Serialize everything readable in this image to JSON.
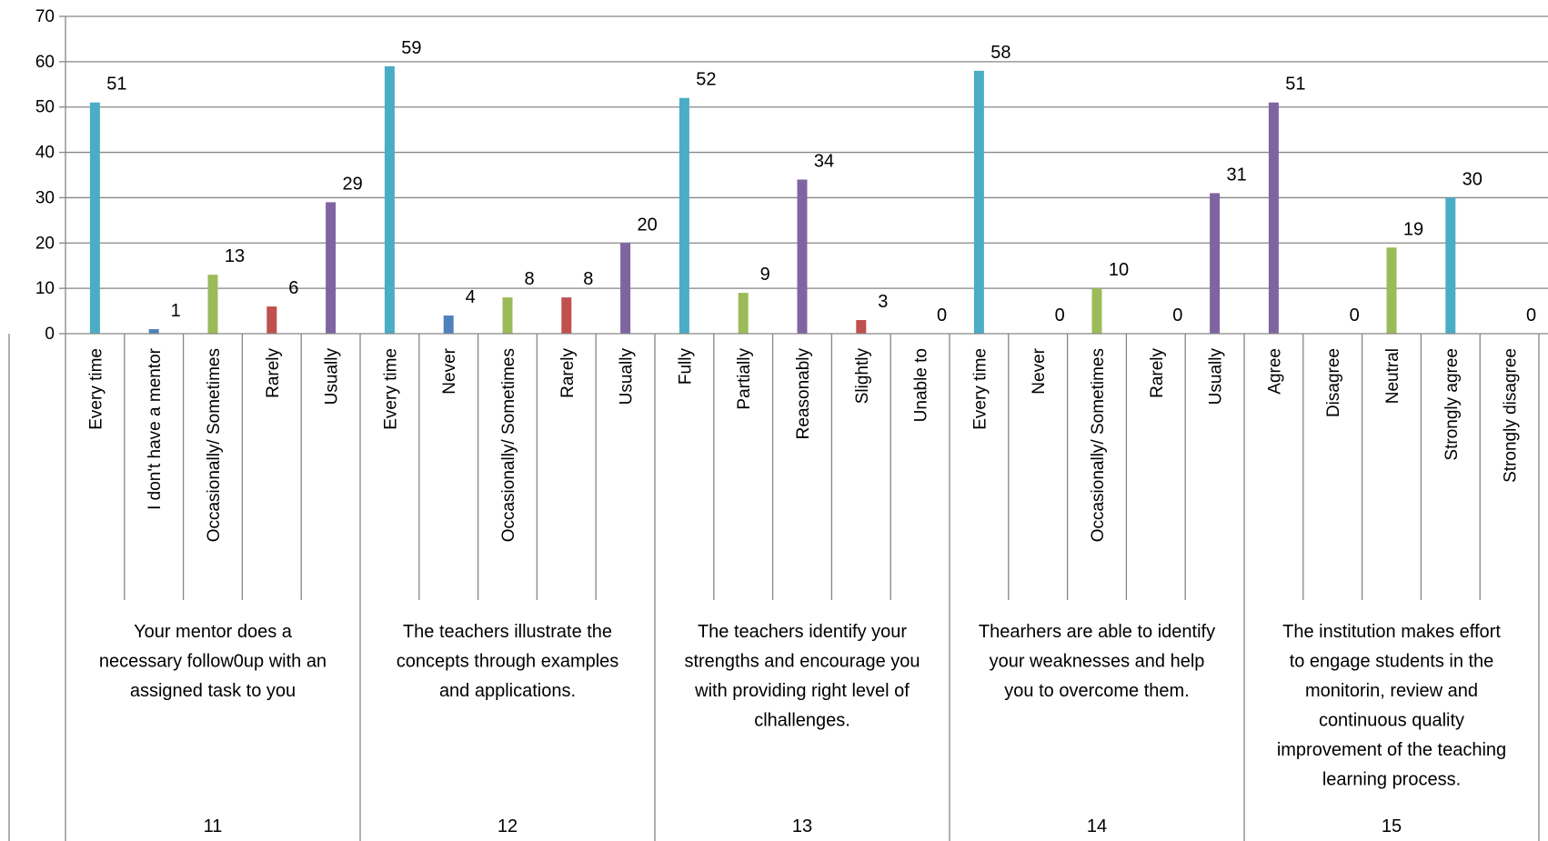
{
  "chart_data": {
    "type": "bar",
    "title": "",
    "xlabel": "",
    "ylabel": "",
    "ylim": [
      0,
      70
    ],
    "y_ticks": [
      0,
      10,
      20,
      30,
      40,
      50,
      60,
      70
    ],
    "grid": true,
    "legend": "none",
    "colors": {
      "teal": "#4BACC6",
      "blue": "#4F81BD",
      "green": "#9BBB59",
      "red": "#C0504D",
      "purple": "#8064A2",
      "axis": "#868686",
      "grid": "#868686"
    },
    "groups": [
      {
        "number": "11",
        "question": "Your mentor does a necessary follow0up with an assigned task to you",
        "question_lines": [
          "Your mentor does a",
          "necessary follow0up with an",
          "assigned task to you"
        ],
        "bars": [
          {
            "category": "Every time",
            "value": 51,
            "color": "teal"
          },
          {
            "category": "I don't have a mentor",
            "value": 1,
            "color": "blue"
          },
          {
            "category": "Occasionally/ Sometimes",
            "value": 13,
            "color": "green"
          },
          {
            "category": "Rarely",
            "value": 6,
            "color": "red"
          },
          {
            "category": "Usually",
            "value": 29,
            "color": "purple"
          }
        ]
      },
      {
        "number": "12",
        "question": "The teachers illustrate the concepts through examples and applications.",
        "question_lines": [
          "The teachers illustrate the",
          "concepts through examples",
          "and applications."
        ],
        "bars": [
          {
            "category": "Every time",
            "value": 59,
            "color": "teal"
          },
          {
            "category": "Never",
            "value": 4,
            "color": "blue"
          },
          {
            "category": "Occasionally/ Sometimes",
            "value": 8,
            "color": "green"
          },
          {
            "category": "Rarely",
            "value": 8,
            "color": "red"
          },
          {
            "category": "Usually",
            "value": 20,
            "color": "purple"
          }
        ]
      },
      {
        "number": "13",
        "question": "The teachers identify your strengths and encourage you with providing right level of clhallenges.",
        "question_lines": [
          "The teachers identify your",
          "strengths and encourage you",
          "with providing right level of",
          "clhallenges."
        ],
        "bars": [
          {
            "category": "Fully",
            "value": 52,
            "color": "teal"
          },
          {
            "category": "Partially",
            "value": 9,
            "color": "green"
          },
          {
            "category": "Reasonably",
            "value": 34,
            "color": "purple"
          },
          {
            "category": "Slightly",
            "value": 3,
            "color": "red"
          },
          {
            "category": "Unable to",
            "value": 0,
            "color": "purple"
          }
        ]
      },
      {
        "number": "14",
        "question": "Thearhers are able to identify your weaknesses and help you to overcome them.",
        "question_lines": [
          "Thearhers are able to identify",
          "your weaknesses and help",
          "you to overcome them."
        ],
        "bars": [
          {
            "category": "Every time",
            "value": 58,
            "color": "teal"
          },
          {
            "category": "Never",
            "value": 0,
            "color": "blue"
          },
          {
            "category": "Occasionally/ Sometimes",
            "value": 10,
            "color": "green"
          },
          {
            "category": "Rarely",
            "value": 0,
            "color": "red"
          },
          {
            "category": "Usually",
            "value": 31,
            "color": "purple"
          }
        ]
      },
      {
        "number": "15",
        "question": "The institution makes effort to engage students in the monitorin, review and continuous quality improvement of the teaching learning process.",
        "question_lines": [
          "The institution makes effort",
          "to engage students in the",
          "monitorin, review and",
          "continuous quality",
          "improvement of the teaching",
          "learning process."
        ],
        "bars": [
          {
            "category": "Agree",
            "value": 51,
            "color": "purple"
          },
          {
            "category": "Disagree",
            "value": 0,
            "color": "blue"
          },
          {
            "category": "Neutral",
            "value": 19,
            "color": "green"
          },
          {
            "category": "Strongly agree",
            "value": 30,
            "color": "teal"
          },
          {
            "category": "Strongly disagree",
            "value": 0,
            "color": "red"
          }
        ]
      }
    ]
  }
}
